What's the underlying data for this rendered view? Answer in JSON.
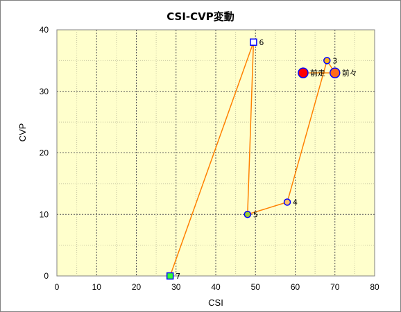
{
  "chart_data": {
    "type": "scatter",
    "title": "CSI-CVP変動",
    "xlabel": "CSI",
    "ylabel": "CVP",
    "xlim": [
      0,
      80
    ],
    "ylim": [
      0,
      40
    ],
    "xticks": [
      "0",
      "10",
      "20",
      "30",
      "40",
      "50",
      "60",
      "70",
      "80"
    ],
    "yticks": [
      "0",
      "10",
      "20",
      "30",
      "40"
    ],
    "grid": true,
    "plot_background": "#ffffcc",
    "line_color": "#ff8000",
    "points": [
      {
        "label": "前走",
        "x": 62,
        "y": 33,
        "marker": "circle-large",
        "fill": "#ff0000",
        "stroke": "#0000ff"
      },
      {
        "label": "前々",
        "x": 70,
        "y": 33,
        "marker": "circle-large",
        "fill": "#ff6a1a",
        "stroke": "#0000ff"
      },
      {
        "label": "3",
        "x": 68,
        "y": 35,
        "marker": "circle",
        "fill": "#ffb31a",
        "stroke": "#0000ff"
      },
      {
        "label": "4",
        "x": 58,
        "y": 12,
        "marker": "circle",
        "fill": "#ffc066",
        "stroke": "#0000ff"
      },
      {
        "label": "5",
        "x": 48,
        "y": 10,
        "marker": "circle",
        "fill": "#99cc33",
        "stroke": "#0000ff"
      },
      {
        "label": "6",
        "x": 49.5,
        "y": 38,
        "marker": "square",
        "fill": "#ffffff",
        "stroke": "#0000ff"
      },
      {
        "label": "7",
        "x": 28.5,
        "y": 0,
        "marker": "square",
        "fill": "#33ff33",
        "stroke": "#0000ff"
      }
    ],
    "path_order": [
      "前走",
      "前々",
      "3",
      "4",
      "5",
      "6",
      "7"
    ]
  }
}
